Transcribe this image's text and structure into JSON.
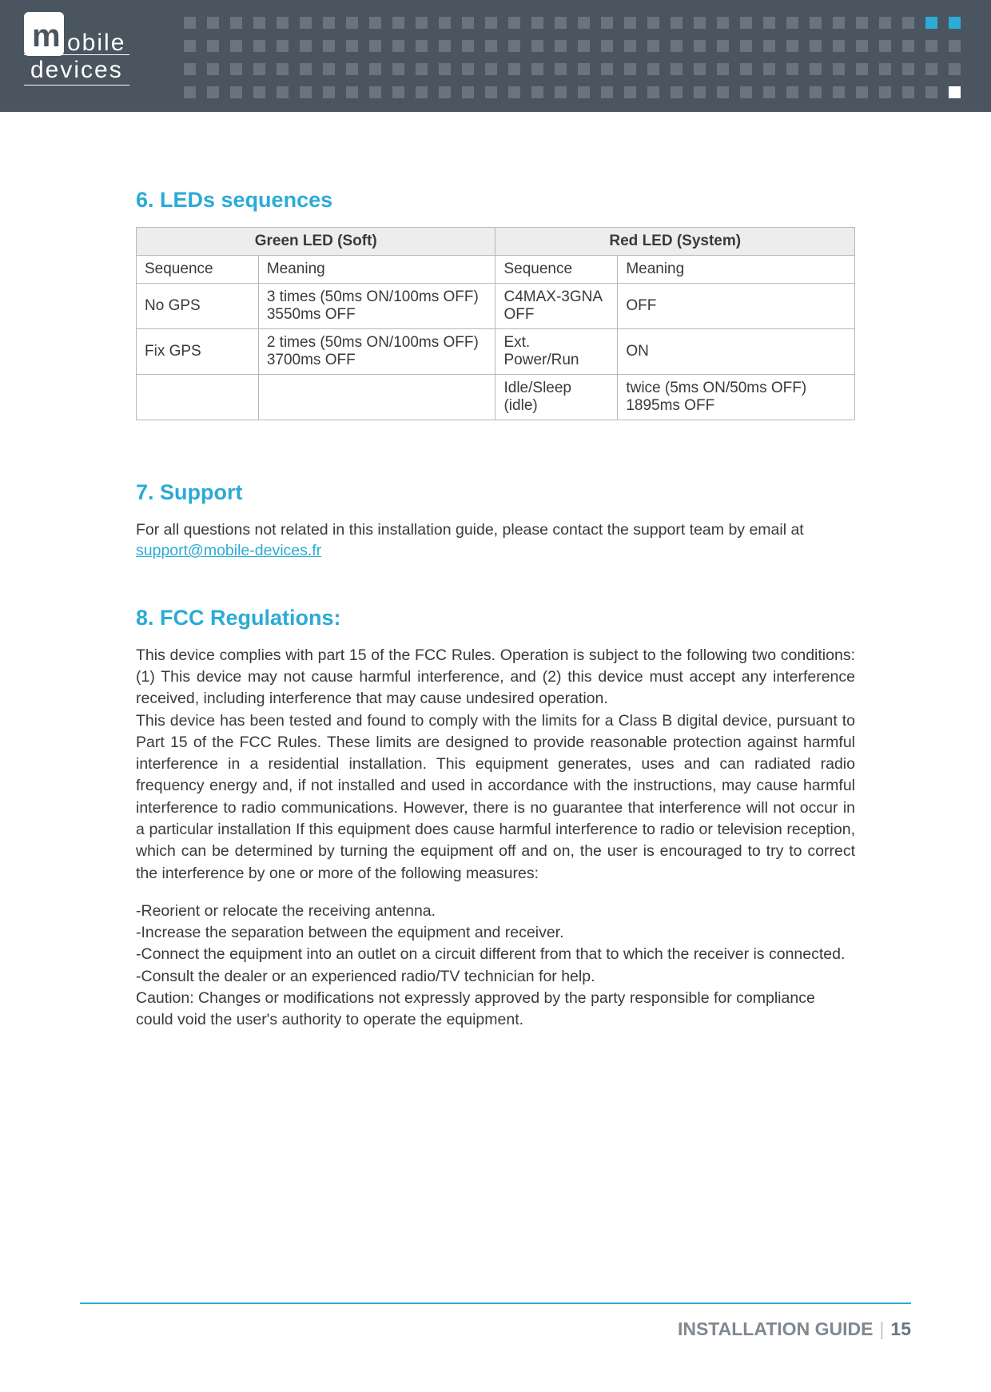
{
  "logo": {
    "line1": "obile",
    "line2": "devices"
  },
  "header": {
    "dot_base_color": "#6a7480",
    "dot_cyan_color": "#2babd6",
    "dot_white_color": "#ffffff",
    "band_color": "#4a5560"
  },
  "section6": {
    "title": "6. LEDs sequences",
    "table": {
      "head_green": "Green LED (Soft)",
      "head_red": "Red LED (System)",
      "sub_sequence": "Sequence",
      "sub_meaning": "Meaning",
      "rows": [
        {
          "g_seq": "No GPS",
          "g_mean": "3 times (50ms ON/100ms OFF)\n3550ms OFF",
          "r_seq": "C4MAX-3GNA OFF",
          "r_mean": "OFF"
        },
        {
          "g_seq": "Fix GPS",
          "g_mean": "2 times (50ms ON/100ms OFF)\n3700ms OFF",
          "r_seq": "Ext. Power/Run",
          "r_mean": "ON"
        },
        {
          "g_seq": "",
          "g_mean": "",
          "r_seq": "Idle/Sleep (idle)",
          "r_mean": "twice (5ms ON/50ms OFF)\n1895ms OFF"
        }
      ]
    }
  },
  "section7": {
    "title": "7. Support",
    "text_before": "For all questions not related in this installation guide, please contact the support team by email at ",
    "email": "support@mobile-devices.fr"
  },
  "section8": {
    "title": "8. FCC Regulations:",
    "para": "This device complies with part 15 of the FCC Rules. Operation is subject to the following two conditions: (1) This device may not cause harmful interference, and (2) this device must accept any interference received, including interference that may cause undesired operation.\nThis device has been tested and found to comply with the limits for a Class B digital device, pursuant to Part 15 of the FCC Rules. These limits are designed to provide reasonable protection against harmful interference in a residential installation. This equipment generates, uses and can radiated radio frequency energy and, if not installed and used in accordance with the instructions, may cause harmful interference to radio communications. However, there is no guarantee that interference will not occur in a particular installation If this equipment does cause harmful interference to radio or television reception, which can be determined by turning the equipment off and on, the user is encouraged to try to correct the interference by one or more of the following measures:",
    "list": [
      "-Reorient or relocate the receiving antenna.",
      "-Increase the separation between the equipment and receiver.",
      "-Connect the equipment into an outlet on a circuit different from that to which the receiver is connected.",
      "-Consult the dealer or an experienced radio/TV technician for help.",
      "Caution: Changes or modifications not expressly approved by the party responsible for compliance could void the user's authority to operate the equipment."
    ]
  },
  "footer": {
    "label": "INSTALLATION GUIDE",
    "page": "15"
  }
}
